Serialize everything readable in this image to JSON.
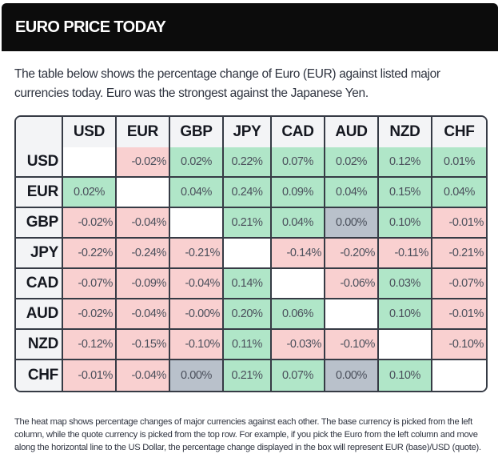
{
  "header": {
    "title": "EURO PRICE TODAY"
  },
  "intro": {
    "text": "The table below shows the percentage change of Euro (EUR) against listed major currencies today. Euro was the strongest against the Japanese Yen."
  },
  "colors": {
    "positive": "#b0e6c8",
    "negative": "#f9d0d0",
    "neutral": "#b9c1cb",
    "blank": "#ffffff",
    "header_bg": "#0c0c0c",
    "label_bg": "#f3f4f6",
    "border": "#363b45"
  },
  "heatmap": {
    "columns": [
      "USD",
      "EUR",
      "GBP",
      "JPY",
      "CAD",
      "AUD",
      "NZD",
      "CHF"
    ],
    "rows": [
      {
        "label": "USD",
        "cells": [
          {
            "text": "",
            "kind": "blank"
          },
          {
            "text": "-0.02%",
            "kind": "neg"
          },
          {
            "text": "0.02%",
            "kind": "pos"
          },
          {
            "text": "0.22%",
            "kind": "pos"
          },
          {
            "text": "0.07%",
            "kind": "pos"
          },
          {
            "text": "0.02%",
            "kind": "pos"
          },
          {
            "text": "0.12%",
            "kind": "pos"
          },
          {
            "text": "0.01%",
            "kind": "pos"
          }
        ]
      },
      {
        "label": "EUR",
        "cells": [
          {
            "text": "0.02%",
            "kind": "pos"
          },
          {
            "text": "",
            "kind": "blank"
          },
          {
            "text": "0.04%",
            "kind": "pos"
          },
          {
            "text": "0.24%",
            "kind": "pos"
          },
          {
            "text": "0.09%",
            "kind": "pos"
          },
          {
            "text": "0.04%",
            "kind": "pos"
          },
          {
            "text": "0.15%",
            "kind": "pos"
          },
          {
            "text": "0.04%",
            "kind": "pos"
          }
        ]
      },
      {
        "label": "GBP",
        "cells": [
          {
            "text": "-0.02%",
            "kind": "neg"
          },
          {
            "text": "-0.04%",
            "kind": "neg"
          },
          {
            "text": "",
            "kind": "blank"
          },
          {
            "text": "0.21%",
            "kind": "pos"
          },
          {
            "text": "0.04%",
            "kind": "pos"
          },
          {
            "text": "0.00%",
            "kind": "zero"
          },
          {
            "text": "0.10%",
            "kind": "pos"
          },
          {
            "text": "-0.01%",
            "kind": "neg"
          }
        ]
      },
      {
        "label": "JPY",
        "cells": [
          {
            "text": "-0.22%",
            "kind": "neg"
          },
          {
            "text": "-0.24%",
            "kind": "neg"
          },
          {
            "text": "-0.21%",
            "kind": "neg"
          },
          {
            "text": "",
            "kind": "blank"
          },
          {
            "text": "-0.14%",
            "kind": "neg"
          },
          {
            "text": "-0.20%",
            "kind": "neg"
          },
          {
            "text": "-0.11%",
            "kind": "neg"
          },
          {
            "text": "-0.21%",
            "kind": "neg"
          }
        ]
      },
      {
        "label": "CAD",
        "cells": [
          {
            "text": "-0.07%",
            "kind": "neg"
          },
          {
            "text": "-0.09%",
            "kind": "neg"
          },
          {
            "text": "-0.04%",
            "kind": "neg"
          },
          {
            "text": "0.14%",
            "kind": "pos"
          },
          {
            "text": "",
            "kind": "blank"
          },
          {
            "text": "-0.06%",
            "kind": "neg"
          },
          {
            "text": "0.03%",
            "kind": "pos"
          },
          {
            "text": "-0.07%",
            "kind": "neg"
          }
        ]
      },
      {
        "label": "AUD",
        "cells": [
          {
            "text": "-0.02%",
            "kind": "neg"
          },
          {
            "text": "-0.04%",
            "kind": "neg"
          },
          {
            "text": "-0.00%",
            "kind": "neg"
          },
          {
            "text": "0.20%",
            "kind": "pos"
          },
          {
            "text": "0.06%",
            "kind": "pos"
          },
          {
            "text": "",
            "kind": "blank"
          },
          {
            "text": "0.10%",
            "kind": "pos"
          },
          {
            "text": "-0.01%",
            "kind": "neg"
          }
        ]
      },
      {
        "label": "NZD",
        "cells": [
          {
            "text": "-0.12%",
            "kind": "neg"
          },
          {
            "text": "-0.15%",
            "kind": "neg"
          },
          {
            "text": "-0.10%",
            "kind": "neg"
          },
          {
            "text": "0.11%",
            "kind": "pos"
          },
          {
            "text": "-0.03%",
            "kind": "neg"
          },
          {
            "text": "-0.10%",
            "kind": "neg"
          },
          {
            "text": "",
            "kind": "blank"
          },
          {
            "text": "-0.10%",
            "kind": "neg"
          }
        ]
      },
      {
        "label": "CHF",
        "cells": [
          {
            "text": "-0.01%",
            "kind": "neg"
          },
          {
            "text": "-0.04%",
            "kind": "neg"
          },
          {
            "text": "0.00%",
            "kind": "zero"
          },
          {
            "text": "0.21%",
            "kind": "pos"
          },
          {
            "text": "0.07%",
            "kind": "pos"
          },
          {
            "text": "0.00%",
            "kind": "zero"
          },
          {
            "text": "0.10%",
            "kind": "pos"
          },
          {
            "text": "",
            "kind": "blank"
          }
        ]
      }
    ]
  },
  "footnote": {
    "text": "The heat map shows percentage changes of major currencies against each other. The base currency is picked from the left column, while the quote currency is picked from the top row. For example, if you pick the Euro from the left column and move along the horizontal line to the US Dollar, the percentage change displayed in the box will represent EUR (base)/USD (quote)."
  }
}
